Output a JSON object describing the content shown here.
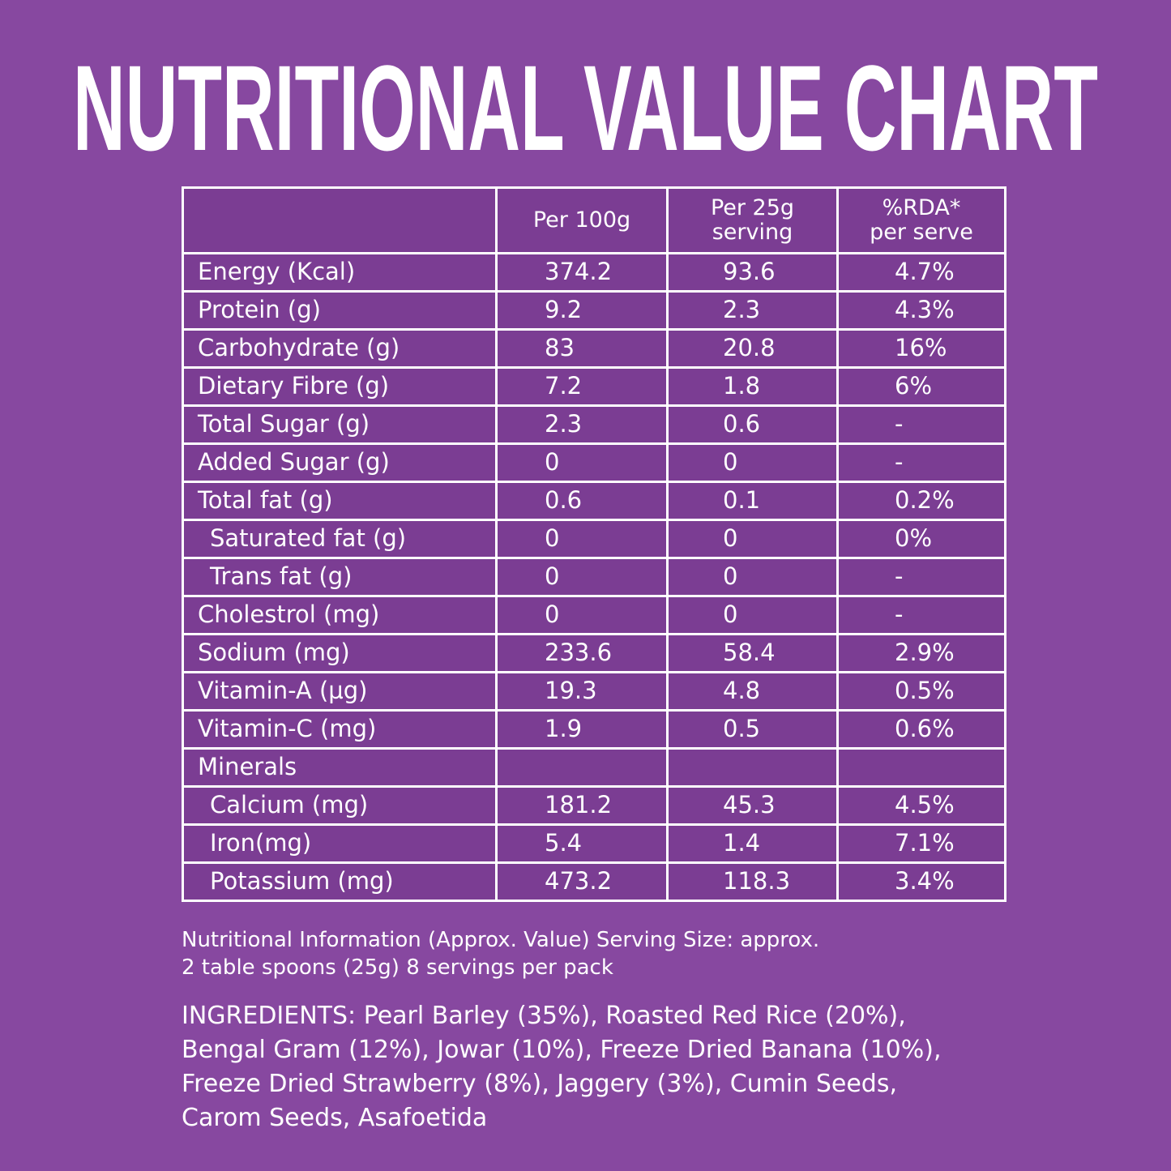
{
  "title": "NUTRITIONAL VALUE CHART",
  "table": {
    "header": [
      "Per 100g",
      "Per 25g\nserving",
      "%RDA*\nper serve"
    ],
    "rows": [
      [
        "Energy (Kcal)",
        "374.2",
        "93.6",
        "4.7%"
      ],
      [
        "Protein (g)",
        "9.2",
        "2.3",
        "4.3%"
      ],
      [
        "Carbohydrate (g)",
        "83",
        "20.8",
        "16%"
      ],
      [
        "Dietary Fibre (g)",
        "7.2",
        "1.8",
        "6%"
      ],
      [
        "Total Sugar (g)",
        "2.3",
        "0.6",
        "-"
      ],
      [
        "Added Sugar (g)",
        "0",
        "0",
        "-"
      ],
      [
        "Total fat (g)",
        "0.6",
        "0.1",
        "0.2%"
      ],
      [
        "Saturated fat (g)",
        "0",
        "0",
        "0%"
      ],
      [
        "Trans fat (g)",
        "0",
        "0",
        "-"
      ],
      [
        "Cholestrol (mg)",
        "0",
        "0",
        "-"
      ],
      [
        "Sodium (mg)",
        "233.6",
        "58.4",
        "2.9%"
      ],
      [
        "Vitamin-A (µg)",
        "19.3",
        "4.8",
        "0.5%"
      ],
      [
        "Vitamin-C (mg)",
        "1.9",
        "0.5",
        "0.6%"
      ],
      [
        "Minerals"
      ],
      [
        "Calcium (mg)",
        "181.2",
        "45.3",
        "4.5%"
      ],
      [
        "Iron(mg)",
        "5.4",
        "1.4",
        "7.1%"
      ],
      [
        "Potassium (mg)",
        "473.2",
        "118.3",
        "3.4%"
      ]
    ]
  },
  "note": [
    "Nutritional Information (Approx. Value) Serving Size: approx.",
    "2 table spoons (25g) 8 servings per pack"
  ],
  "ingredients": [
    "INGREDIENTS: Pearl Barley (35%), Roasted Red Rice (20%),",
    "Bengal Gram (12%), Jowar (10%), Freeze Dried Banana (10%),",
    "Freeze Dried Strawberry (8%), Jaggery (3%), Cumin Seeds,",
    "Carom Seeds, Asafoetida"
  ]
}
